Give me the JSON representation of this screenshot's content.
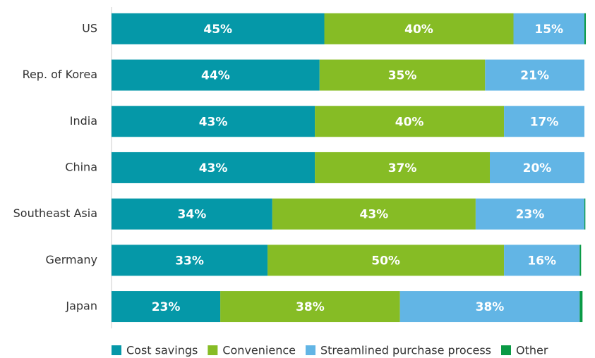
{
  "chart_data": {
    "type": "stacked-bar-horizontal",
    "categories": [
      "US",
      "Rep. of Korea",
      "India",
      "China",
      "Southeast Asia",
      "Germany",
      "Japan"
    ],
    "xlim": [
      0,
      100
    ],
    "legend": "bottom",
    "series": [
      {
        "name": "Cost savings",
        "color": "#0598a8",
        "values": [
          45,
          44,
          43,
          43,
          34,
          33,
          23
        ],
        "value_labels": [
          "45%",
          "44%",
          "43%",
          "43%",
          "34%",
          "33%",
          "23%"
        ]
      },
      {
        "name": "Convenience",
        "color": "#86bc25",
        "values": [
          40,
          35,
          40,
          37,
          43,
          50,
          38
        ],
        "value_labels": [
          "40%",
          "35%",
          "40%",
          "37%",
          "43%",
          "50%",
          "38%"
        ]
      },
      {
        "name": "Streamlined purchase process",
        "color": "#62b5e5",
        "values": [
          15,
          21,
          17,
          20,
          23,
          16,
          38
        ],
        "value_labels": [
          "15%",
          "21%",
          "17%",
          "20%",
          "23%",
          "16%",
          "38%"
        ]
      },
      {
        "name": "Other",
        "color": "#0a9a45",
        "values": [
          0.3,
          0,
          0,
          0,
          0.2,
          0.3,
          0.6
        ]
      }
    ]
  }
}
